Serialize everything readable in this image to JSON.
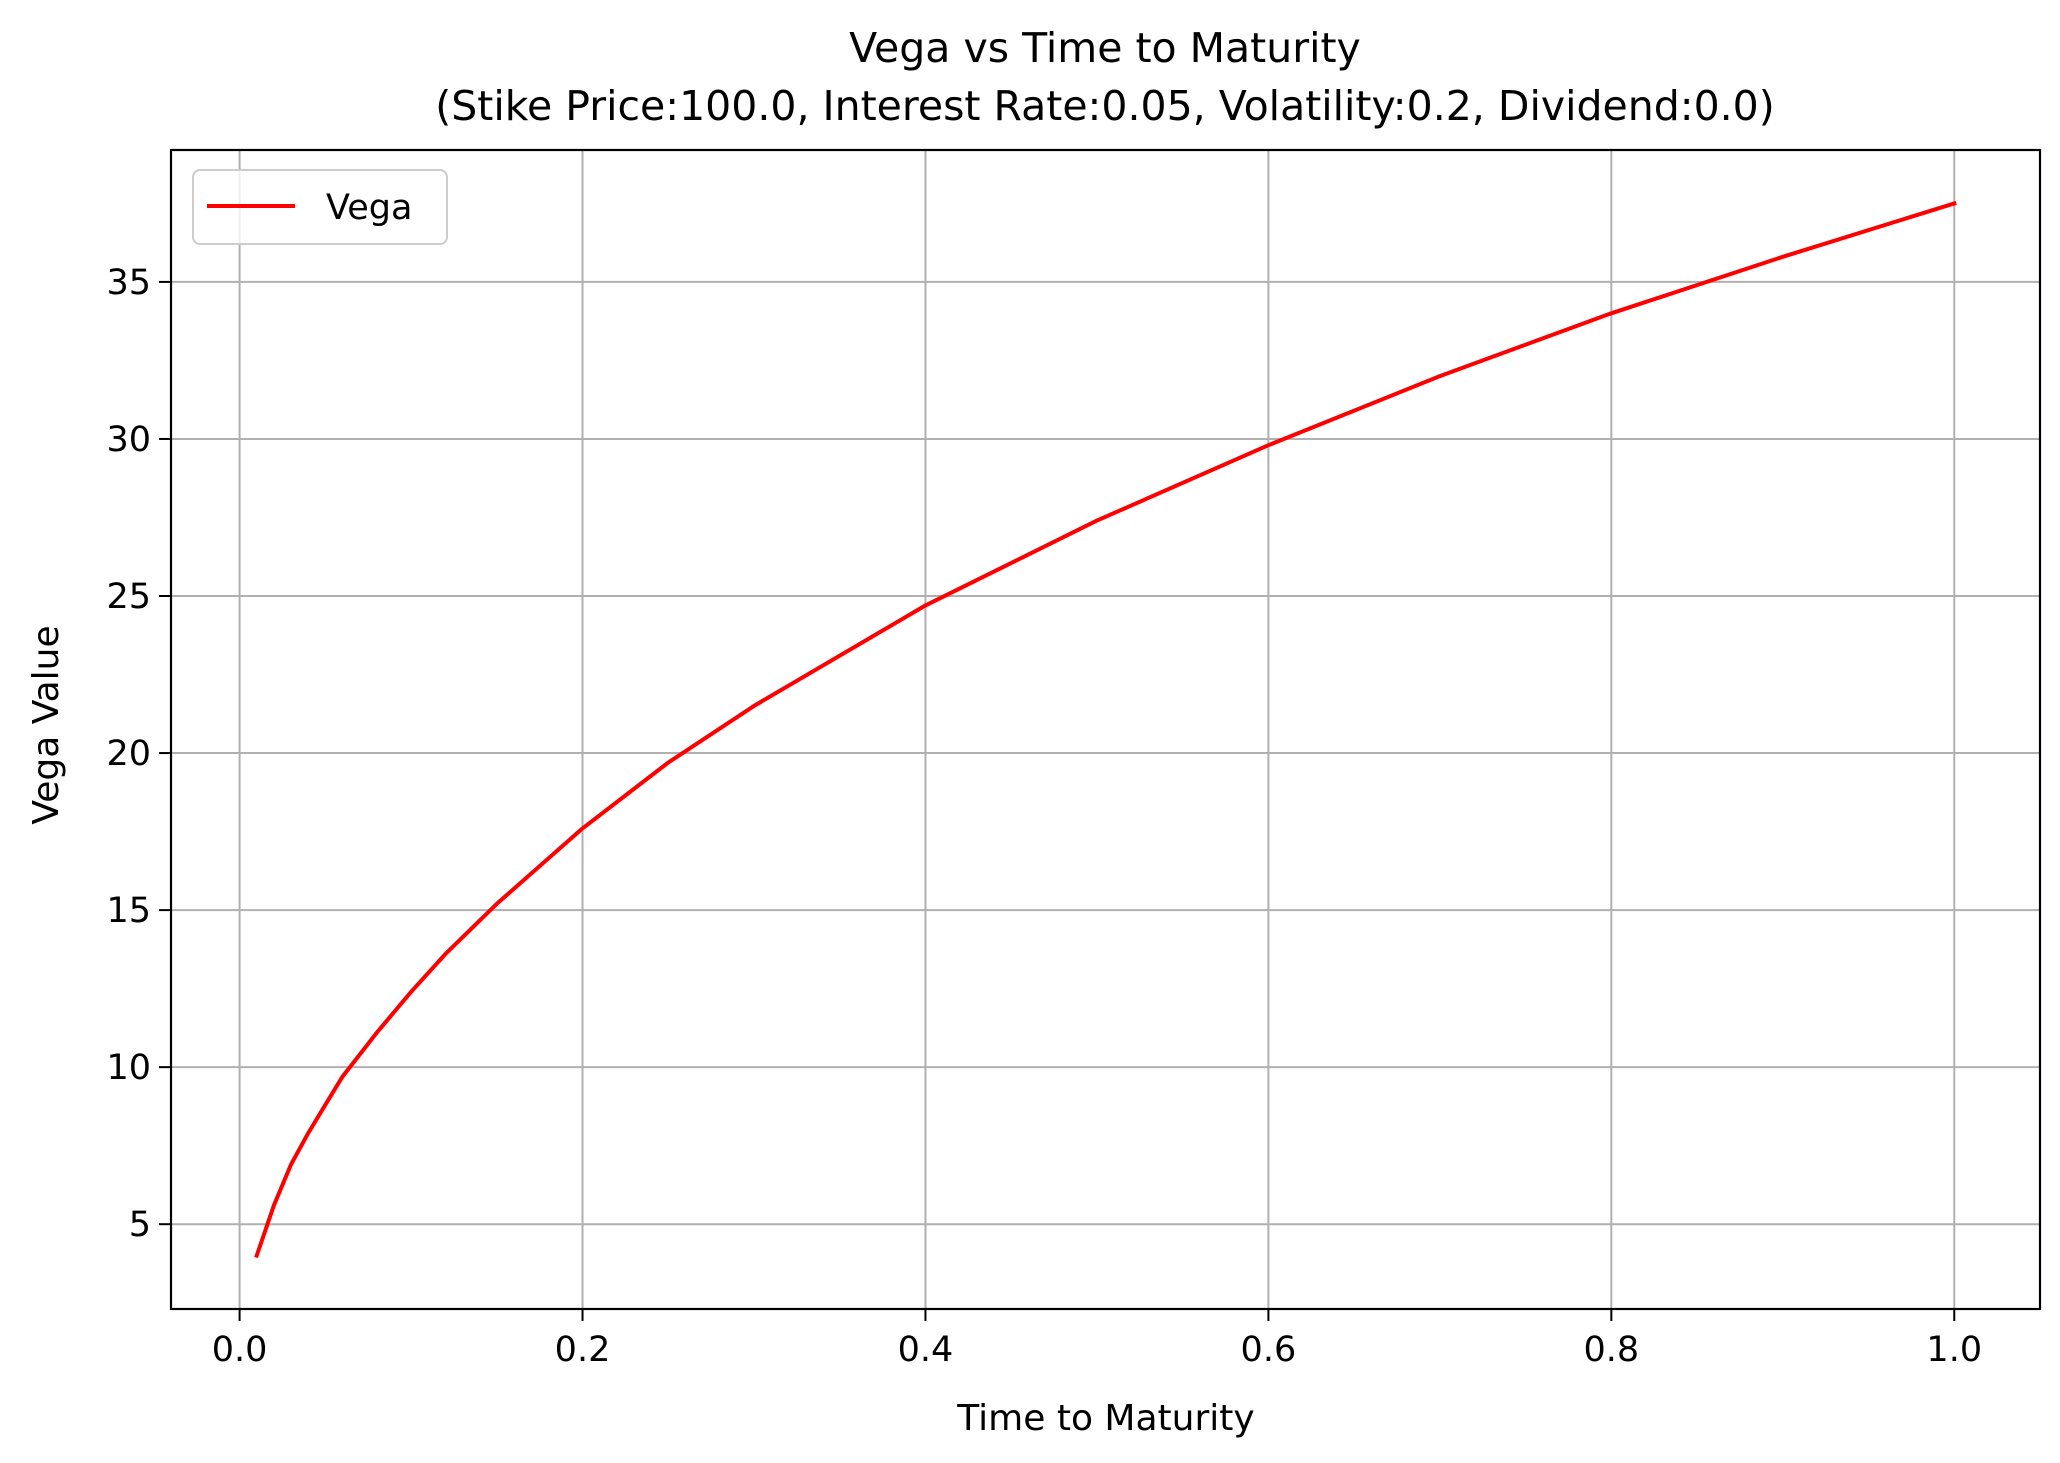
{
  "chart_data": {
    "type": "line",
    "title": "Vega vs Time to Maturity",
    "subtitle": "(Stike Price:100.0, Interest Rate:0.05, Volatility:0.2, Dividend:0.0)",
    "xlabel": "Time to Maturity",
    "ylabel": "Vega Value",
    "xlim": [
      -0.04,
      1.05
    ],
    "ylim": [
      2.3,
      39.2
    ],
    "xticks": [
      0.0,
      0.2,
      0.4,
      0.6,
      0.8,
      1.0
    ],
    "xtick_labels": [
      "0.0",
      "0.2",
      "0.4",
      "0.6",
      "0.8",
      "1.0"
    ],
    "yticks": [
      5,
      10,
      15,
      20,
      25,
      30,
      35
    ],
    "ytick_labels": [
      "5",
      "10",
      "15",
      "20",
      "25",
      "30",
      "35"
    ],
    "grid": true,
    "legend_position": "top-left",
    "series": [
      {
        "name": "Vega",
        "color": "#ff0000",
        "x": [
          0.01,
          0.02,
          0.03,
          0.04,
          0.05,
          0.06,
          0.08,
          0.1,
          0.12,
          0.15,
          0.2,
          0.25,
          0.3,
          0.4,
          0.5,
          0.6,
          0.7,
          0.8,
          0.9,
          1.0
        ],
        "y": [
          4.0,
          5.6,
          6.9,
          7.9,
          8.8,
          9.7,
          11.1,
          12.4,
          13.6,
          15.2,
          17.6,
          19.7,
          21.5,
          24.7,
          27.4,
          29.8,
          32.0,
          34.0,
          35.8,
          37.5
        ]
      }
    ]
  }
}
